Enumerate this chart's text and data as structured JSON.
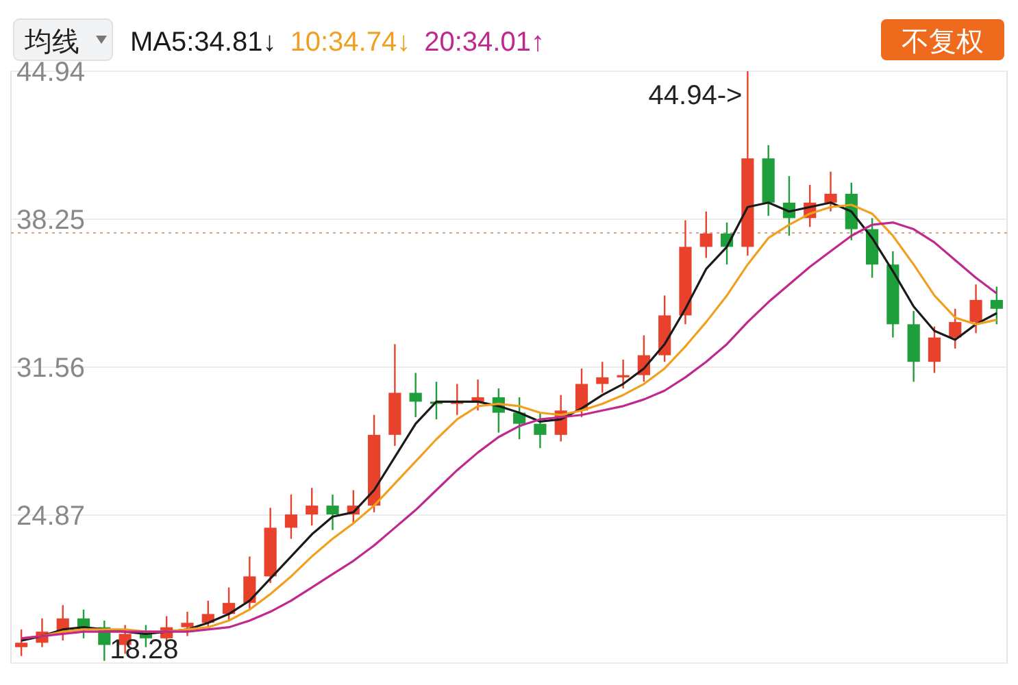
{
  "chart_data": {
    "type": "candlestick",
    "categories": [
      null,
      null,
      null,
      null,
      null,
      null,
      null,
      null,
      null,
      null,
      null,
      null,
      null,
      null,
      null,
      null,
      null,
      null,
      null,
      null,
      null,
      null,
      null,
      null,
      null,
      null,
      null,
      null,
      null,
      null,
      null,
      null,
      null,
      null,
      null,
      null,
      null,
      null,
      null,
      null,
      null,
      null,
      null,
      null,
      null,
      null,
      null,
      null
    ],
    "ohlc": [
      [
        18.9,
        19.7,
        18.5,
        19.1
      ],
      [
        19.1,
        20.2,
        18.9,
        19.6
      ],
      [
        19.6,
        20.8,
        19.2,
        20.2
      ],
      [
        20.2,
        20.6,
        19.3,
        19.8
      ],
      [
        19.8,
        20.1,
        18.28,
        19.0
      ],
      [
        19.0,
        19.9,
        18.6,
        19.5
      ],
      [
        19.5,
        19.9,
        18.9,
        19.3
      ],
      [
        19.3,
        20.3,
        19.0,
        19.8
      ],
      [
        19.8,
        20.5,
        19.4,
        20.0
      ],
      [
        20.0,
        21.0,
        19.8,
        20.4
      ],
      [
        20.4,
        21.6,
        20.1,
        20.9
      ],
      [
        20.9,
        23.0,
        20.6,
        22.1
      ],
      [
        22.1,
        25.2,
        21.8,
        24.3
      ],
      [
        24.3,
        25.8,
        23.8,
        24.9
      ],
      [
        24.9,
        26.1,
        24.4,
        25.3
      ],
      [
        25.3,
        25.8,
        24.2,
        24.9
      ],
      [
        24.9,
        26.0,
        24.5,
        25.3
      ],
      [
        25.3,
        29.4,
        25.0,
        28.5
      ],
      [
        28.5,
        32.6,
        28.0,
        30.4
      ],
      [
        30.4,
        31.3,
        29.3,
        30.0
      ],
      [
        30.0,
        30.9,
        29.2,
        29.9
      ],
      [
        29.9,
        30.8,
        29.4,
        30.0
      ],
      [
        30.0,
        31.0,
        29.6,
        30.2
      ],
      [
        30.2,
        30.6,
        28.6,
        29.5
      ],
      [
        29.5,
        30.2,
        28.3,
        29.0
      ],
      [
        29.0,
        29.5,
        27.9,
        28.5
      ],
      [
        28.5,
        30.3,
        28.2,
        29.6
      ],
      [
        29.6,
        31.5,
        29.3,
        30.8
      ],
      [
        30.8,
        31.8,
        30.4,
        31.1
      ],
      [
        31.1,
        31.9,
        30.6,
        31.2
      ],
      [
        31.2,
        33.0,
        30.9,
        32.1
      ],
      [
        32.1,
        34.8,
        31.8,
        33.9
      ],
      [
        33.9,
        38.2,
        33.5,
        37.0
      ],
      [
        37.0,
        38.6,
        36.5,
        37.6
      ],
      [
        37.6,
        38.1,
        36.2,
        37.0
      ],
      [
        37.0,
        44.94,
        36.6,
        41.0
      ],
      [
        41.0,
        41.6,
        38.4,
        39.0
      ],
      [
        39.0,
        40.2,
        37.5,
        38.3
      ],
      [
        38.3,
        39.8,
        37.9,
        39.0
      ],
      [
        39.0,
        40.4,
        38.6,
        39.4
      ],
      [
        39.4,
        39.9,
        37.3,
        37.8
      ],
      [
        37.8,
        38.3,
        35.6,
        36.2
      ],
      [
        36.2,
        36.8,
        32.9,
        33.5
      ],
      [
        33.5,
        34.1,
        30.9,
        31.8
      ],
      [
        31.8,
        33.4,
        31.3,
        32.9
      ],
      [
        32.9,
        34.2,
        32.4,
        33.6
      ],
      [
        33.6,
        35.3,
        33.1,
        34.6
      ],
      [
        34.6,
        35.2,
        33.5,
        34.2
      ]
    ],
    "series": [
      {
        "name": "MA5:34.81↓",
        "type": "line",
        "color": "#1a1a1a",
        "values": [
          19.2,
          19.4,
          19.7,
          19.8,
          19.7,
          19.6,
          19.5,
          19.6,
          19.7,
          20.0,
          20.4,
          21.0,
          22.0,
          23.0,
          24.0,
          24.8,
          25.0,
          26.0,
          27.5,
          29.0,
          30.0,
          30.0,
          30.0,
          29.8,
          29.5,
          29.1,
          29.2,
          29.7,
          30.3,
          30.8,
          31.5,
          32.6,
          34.2,
          36.0,
          37.0,
          38.8,
          39.0,
          38.6,
          38.8,
          39.0,
          38.6,
          37.4,
          35.9,
          34.3,
          33.2,
          32.8,
          33.5,
          34.0
        ]
      },
      {
        "name": "10:34.74↓",
        "type": "line",
        "color": "#f0a020",
        "values": [
          19.3,
          19.4,
          19.6,
          19.7,
          19.7,
          19.7,
          19.6,
          19.6,
          19.7,
          19.8,
          20.1,
          20.6,
          21.3,
          22.1,
          23.0,
          23.8,
          24.5,
          25.3,
          26.3,
          27.3,
          28.3,
          29.2,
          29.8,
          29.9,
          29.8,
          29.5,
          29.4,
          29.6,
          29.9,
          30.3,
          30.8,
          31.5,
          32.5,
          33.6,
          34.8,
          36.2,
          37.4,
          38.0,
          38.5,
          38.8,
          38.9,
          38.5,
          37.5,
          36.2,
          34.8,
          33.8,
          33.5,
          33.7
        ]
      },
      {
        "name": "20:34.01↑",
        "type": "line",
        "color": "#c0288f",
        "values": [
          19.3,
          19.4,
          19.5,
          19.6,
          19.6,
          19.6,
          19.6,
          19.6,
          19.6,
          19.7,
          19.8,
          20.1,
          20.5,
          21.0,
          21.6,
          22.2,
          22.8,
          23.5,
          24.3,
          25.1,
          26.0,
          26.9,
          27.7,
          28.4,
          28.9,
          29.2,
          29.3,
          29.4,
          29.6,
          29.8,
          30.1,
          30.5,
          31.1,
          31.8,
          32.6,
          33.6,
          34.5,
          35.3,
          36.1,
          36.8,
          37.5,
          38.0,
          38.1,
          37.8,
          37.2,
          36.4,
          35.6,
          34.9
        ]
      }
    ],
    "ylim": [
      18.18,
      44.94
    ],
    "yticks": [
      44.94,
      38.25,
      31.56,
      24.87,
      {
        "value": 18.18,
        "label": null
      }
    ],
    "grid": "y",
    "legend": "top left",
    "ref_lines": [
      {
        "axis": "y",
        "value": 37.63,
        "color": "#d9a58a",
        "line_style": "dotted"
      }
    ],
    "annotations": [
      "44.94->",
      "18.28",
      "均线",
      "不复权"
    ]
  }
}
